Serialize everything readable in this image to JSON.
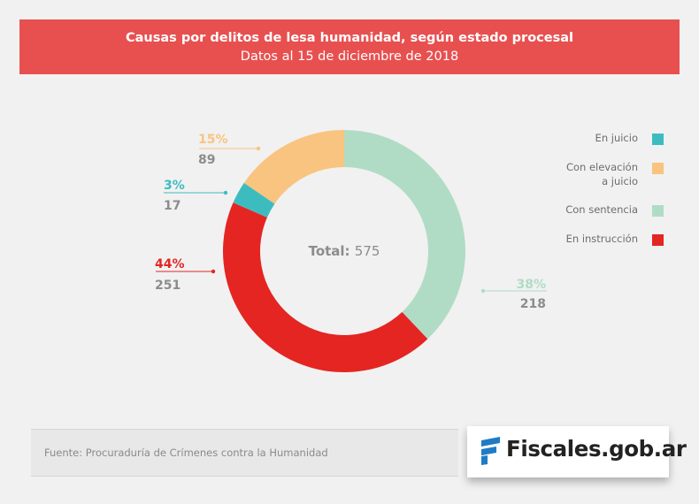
{
  "header": {
    "title": "Causas por delitos de lesa humanidad, según estado procesal",
    "subtitle": "Datos al 15 de diciembre de 2018"
  },
  "colors": {
    "banner": "#e85050",
    "en_juicio": "#3dbcc0",
    "con_elevacion": "#f9c47f",
    "con_sentencia": "#b0dcc6",
    "en_instruccion": "#e42522",
    "value_text": "#8c8c8c"
  },
  "chart_data": {
    "type": "pie",
    "variant": "donut",
    "title": "Causas por delitos de lesa humanidad, según estado procesal",
    "subtitle": "Datos al 15 de diciembre de 2018",
    "total_label": "Total:",
    "total": 575,
    "legend_position": "right",
    "categories": [
      "Con sentencia",
      "En instrucción",
      "En juicio",
      "Con elevación a juicio"
    ],
    "values": [
      218,
      251,
      17,
      89
    ],
    "percentages": [
      "38%",
      "44%",
      "3%",
      "15%"
    ],
    "legend": [
      {
        "label": "En juicio",
        "color": "#3dbcc0"
      },
      {
        "label": "Con elevación a juicio",
        "color": "#f9c47f"
      },
      {
        "label": "Con sentencia",
        "color": "#b0dcc6"
      },
      {
        "label": "En instrucción",
        "color": "#e42522"
      }
    ]
  },
  "footer": {
    "source": "Fuente: Procuraduría de Crímenes contra la Humanidad",
    "logo_text": "Fiscales.gob.ar"
  }
}
